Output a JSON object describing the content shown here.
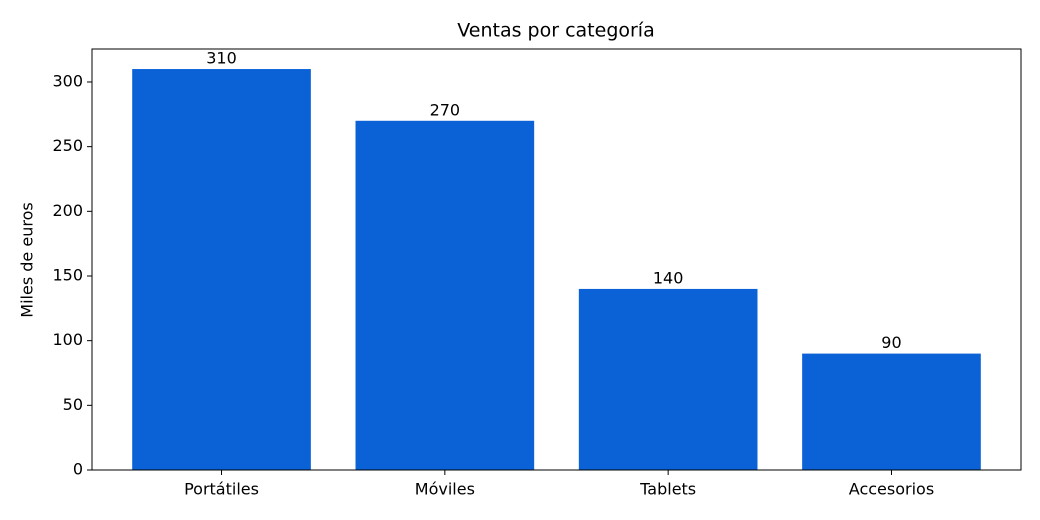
{
  "chart_data": {
    "type": "bar",
    "title": "Ventas por categoría",
    "y_label": "Miles de euros",
    "categories": [
      "Portátiles",
      "Móviles",
      "Tablets",
      "Accesorios"
    ],
    "values": [
      310,
      270,
      140,
      90
    ],
    "color": "#0b62d6",
    "ylim": [
      0,
      325.5
    ],
    "yticks": [
      0,
      50,
      100,
      150,
      200,
      250,
      300
    ],
    "grid": false,
    "value_labels_shown": true
  }
}
